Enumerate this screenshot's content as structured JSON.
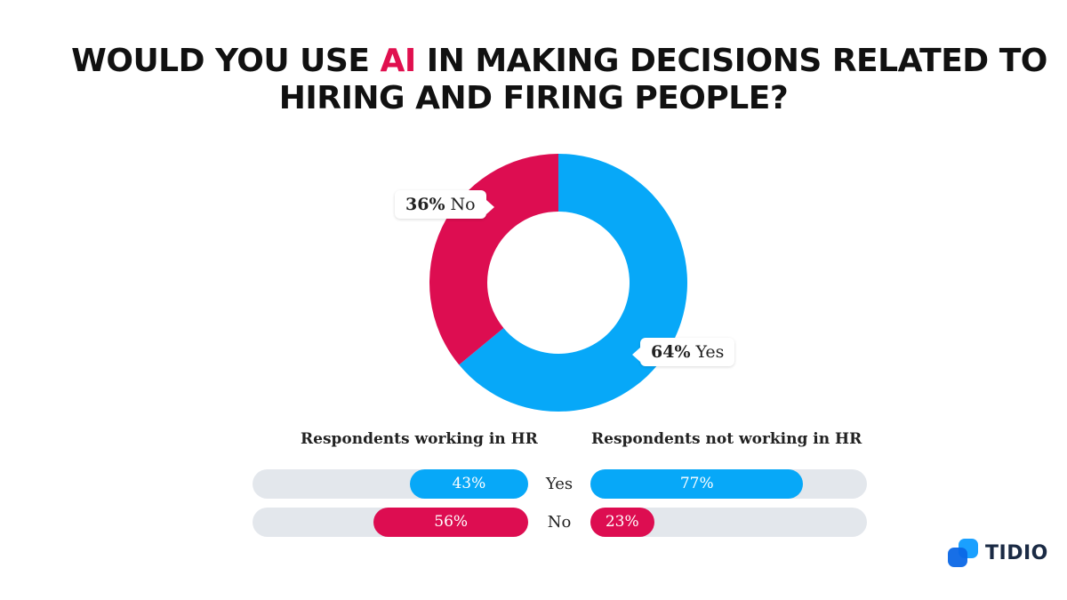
{
  "title": {
    "part1": "WOULD YOU USE ",
    "accent": "AI",
    "part2": " IN MAKING DECISIONS RELATED TO",
    "line2": "HIRING AND FIRING PEOPLE?"
  },
  "colors": {
    "yes": "#07a8f8",
    "no": "#dd0d51",
    "track": "#e3e7ec",
    "accent": "#e0104f"
  },
  "chart_data": [
    {
      "type": "pie",
      "donut": true,
      "slices": [
        {
          "label": "Yes",
          "value": 64,
          "color": "#07a8f8"
        },
        {
          "label": "No",
          "value": 36,
          "color": "#dd0d51"
        }
      ],
      "callouts": {
        "yes_pct": "64%",
        "yes_label": " Yes",
        "no_pct": "36%",
        "no_label": " No"
      }
    },
    {
      "type": "bar",
      "orientation": "horizontal",
      "categories": [
        "Yes",
        "No"
      ],
      "groups": [
        {
          "name": "Respondents working in HR",
          "values": [
            43,
            56
          ],
          "labels": [
            "43%",
            "56%"
          ],
          "direction": "right-to-left"
        },
        {
          "name": "Respondents not working in HR",
          "values": [
            77,
            23
          ],
          "labels": [
            "77%",
            "23%"
          ],
          "direction": "left-to-right"
        }
      ],
      "xlim": [
        0,
        100
      ]
    }
  ],
  "logo": {
    "text": "TIDIO",
    "icon": "tidio-logo-icon"
  }
}
